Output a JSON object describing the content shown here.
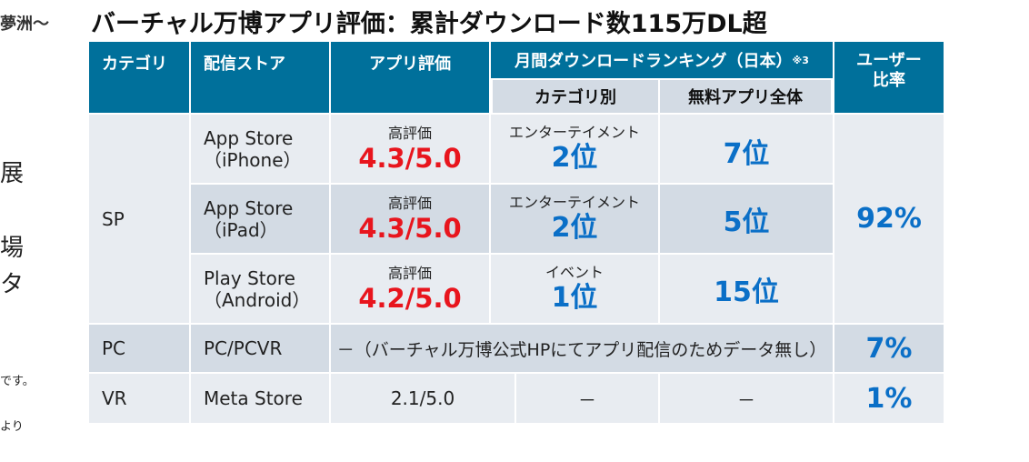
{
  "left_fragments": [
    "夢洲～",
    "展",
    "場",
    "タ",
    "です。",
    "より"
  ],
  "title": "バーチャル万博アプリ評価：累計ダウンロード数115万DL超",
  "headers": {
    "category": "カテゴリ",
    "store": "配信ストア",
    "rating": "アプリ評価",
    "ranking": "月間ダウンロードランキング（日本）",
    "ranking_note": "※3",
    "ranking_sub_category": "カテゴリ別",
    "ranking_sub_free": "無料アプリ全体",
    "user_ratio_line1": "ユーザー",
    "user_ratio_line2": "比率"
  },
  "rows": [
    {
      "store_line1": "App Store",
      "store_line2": "（iPhone）",
      "rating_label": "高評価",
      "rating": "4.3/5.0",
      "category_genre": "エンターテイメント",
      "category_rank": "2位",
      "free_rank": "7位"
    },
    {
      "store_line1": "App Store",
      "store_line2": "（iPad）",
      "rating_label": "高評価",
      "rating": "4.3/5.0",
      "category_genre": "エンターテイメント",
      "category_rank": "2位",
      "free_rank": "5位"
    },
    {
      "store_line1": "Play Store",
      "store_line2": "（Android）",
      "rating_label": "高評価",
      "rating": "4.2/5.0",
      "category_genre": "イベント",
      "category_rank": "1位",
      "free_rank": "15位"
    }
  ],
  "sp": {
    "label": "SP",
    "ratio": "92%"
  },
  "pc": {
    "label": "PC",
    "store": "PC/PCVR",
    "note": "－（バーチャル万博公式HPにてアプリ配信のためデータ無し）",
    "ratio": "7%"
  },
  "vr": {
    "label": "VR",
    "store": "Meta Store",
    "rating": "2.1/5.0",
    "category_rank": "－",
    "free_rank": "－",
    "ratio": "1%"
  }
}
